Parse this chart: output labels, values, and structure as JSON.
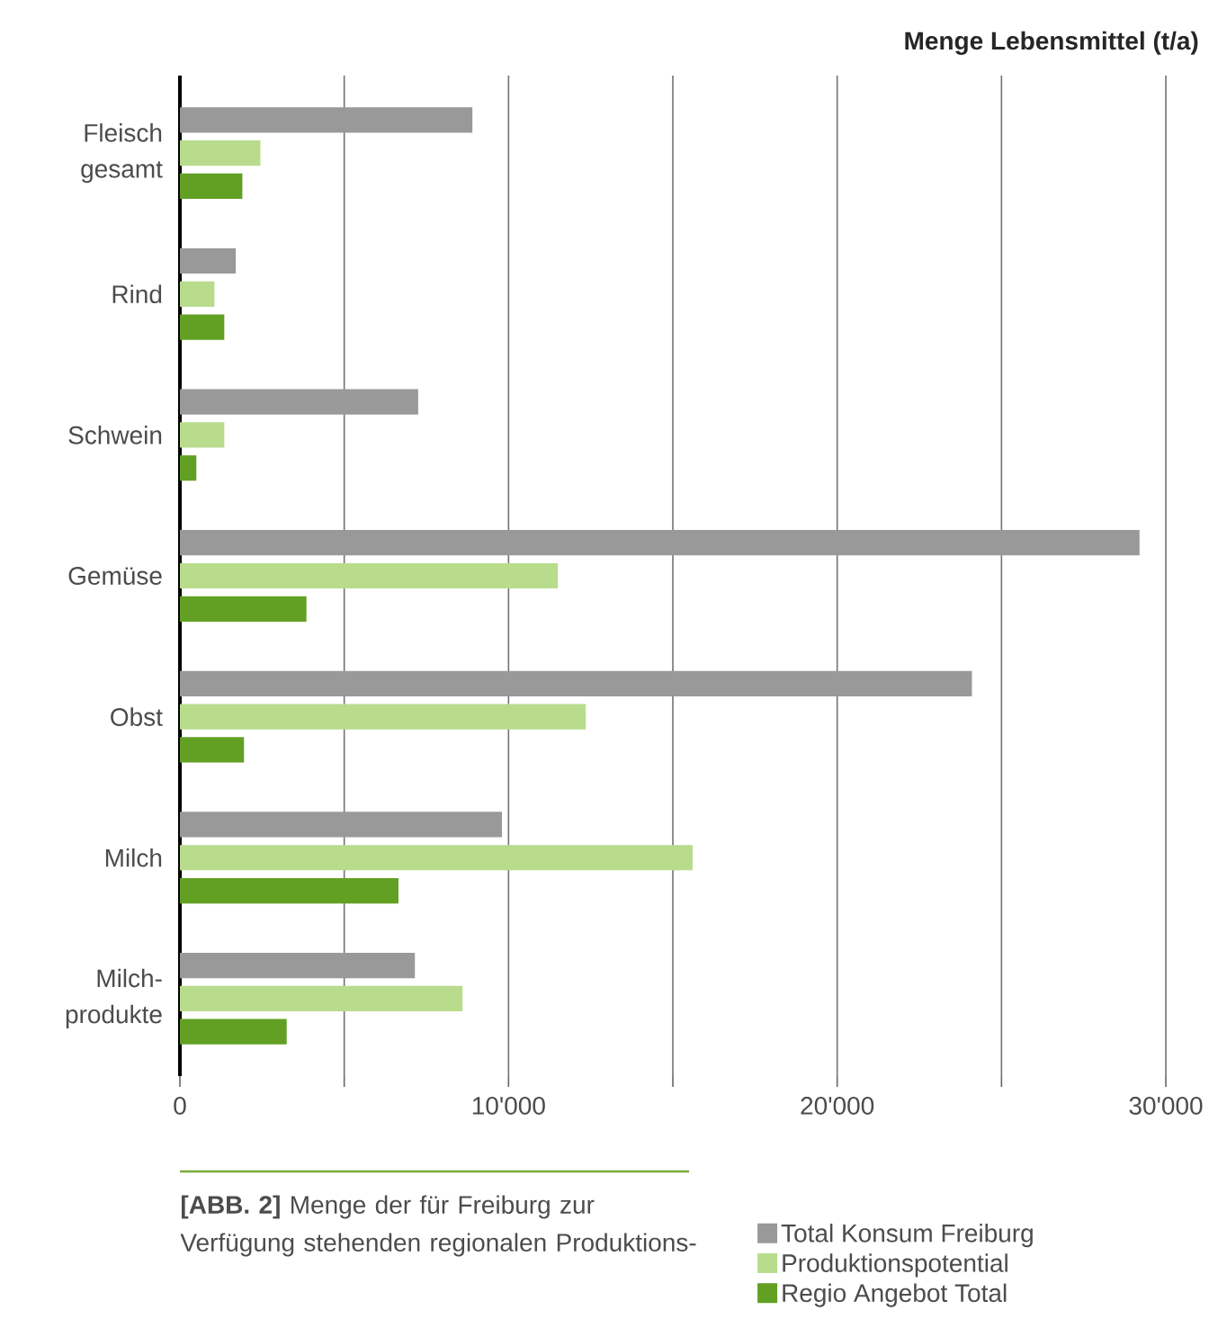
{
  "chart_data": {
    "type": "bar",
    "orientation": "horizontal",
    "xlabel": "Menge Lebensmittel (t/a)",
    "categories": [
      "Fleisch gesamt",
      "Rind",
      "Schwein",
      "Gemüse",
      "Obst",
      "Milch",
      "Milch-produkte"
    ],
    "series": [
      {
        "name": "Total Konsum Freiburg",
        "color": "#999999",
        "values": [
          8900,
          1700,
          7250,
          29200,
          24100,
          9800,
          7150
        ]
      },
      {
        "name": "Produktionspotential",
        "color": "#b8dc8c",
        "values": [
          2450,
          1050,
          1350,
          11500,
          12350,
          15600,
          8600
        ]
      },
      {
        "name": "Regio Angebot Total",
        "color": "#62a023",
        "values": [
          1900,
          1350,
          500,
          3850,
          1950,
          6650,
          3250
        ]
      }
    ],
    "xlim": [
      0,
      30000
    ],
    "xticks": [
      0,
      {
        "value": 5000,
        "label": null
      },
      {
        "value": 10000,
        "label": "10'000"
      },
      {
        "value": 15000,
        "label": null
      },
      {
        "value": 20000,
        "label": "20'000"
      },
      {
        "value": 25000,
        "label": null
      },
      {
        "value": 30000,
        "label": "30'000"
      }
    ],
    "grid": "x",
    "legend": "bottom right",
    "annotations": [
      "**[ABB. 2]** Menge der für Freiburg zur Verfügung stehenden regionalen Produktions-"
    ]
  }
}
